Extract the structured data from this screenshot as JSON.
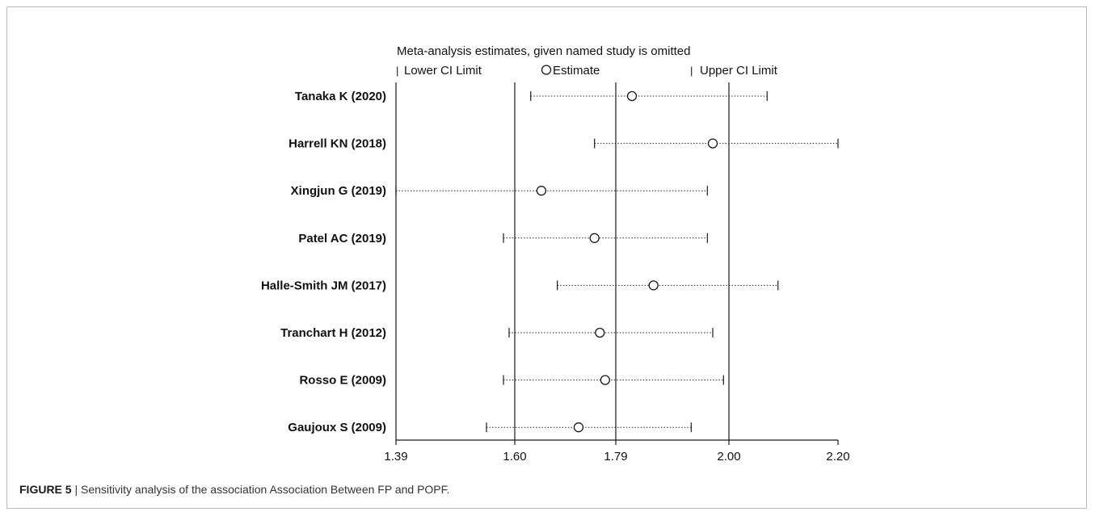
{
  "caption": {
    "label": "FIGURE 5",
    "separator": "|",
    "text": "Sensitivity analysis of the association Association Between FP and POPF."
  },
  "legend": {
    "lower_symbol": "|",
    "lower_label": "Lower CI Limit",
    "estimate_label": "Estimate",
    "upper_symbol": "|",
    "upper_label": "Upper CI Limit"
  },
  "chart_data": {
    "type": "forest",
    "title": "Meta-analysis estimates, given named study is omitted",
    "x_ticks": [
      "1.39",
      "1.60",
      "1.79",
      "2.00",
      "2.20"
    ],
    "x_tick_values": [
      1.39,
      1.6,
      1.79,
      2.0,
      2.2
    ],
    "xlim": [
      1.39,
      2.2
    ],
    "reference_lines": [
      1.6,
      1.79,
      2.0
    ],
    "studies": [
      {
        "label": "Tanaka K (2020)",
        "lower": 1.63,
        "estimate": 1.82,
        "upper": 2.07
      },
      {
        "label": "Harrell KN (2018)",
        "lower": 1.75,
        "estimate": 1.97,
        "upper": 2.2
      },
      {
        "label": "Xingjun G (2019)",
        "lower": 1.39,
        "estimate": 1.65,
        "upper": 1.96
      },
      {
        "label": "Patel AC (2019)",
        "lower": 1.58,
        "estimate": 1.75,
        "upper": 1.96
      },
      {
        "label": "Halle-Smith JM (2017)",
        "lower": 1.68,
        "estimate": 1.86,
        "upper": 2.09
      },
      {
        "label": "Tranchart H (2012)",
        "lower": 1.59,
        "estimate": 1.76,
        "upper": 1.97
      },
      {
        "label": "Rosso E (2009)",
        "lower": 1.58,
        "estimate": 1.77,
        "upper": 1.99
      },
      {
        "label": "Gaujoux S (2009)",
        "lower": 1.55,
        "estimate": 1.72,
        "upper": 1.93
      }
    ],
    "colors": {
      "line": "#1a1a1a",
      "text": "#111111"
    }
  }
}
